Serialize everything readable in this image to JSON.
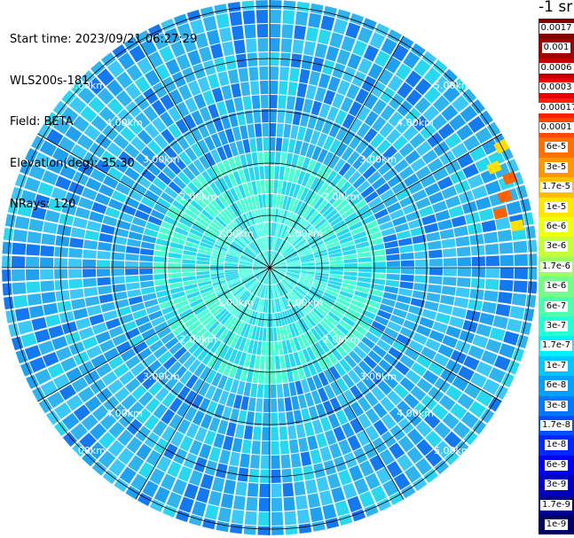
{
  "info": {
    "start_time": "Start time: 2023/09/21 06:27:29",
    "instrument": "WLS200s-181",
    "field": "Field: BETA",
    "elevation": "Elevation(deg): 35.30",
    "nrays": "NRays: 120"
  },
  "colorbar": {
    "unit_label": "-1 sr",
    "levels": [
      {
        "label": "0.0017",
        "color": "#800000"
      },
      {
        "label": "0.001",
        "color": "#a00000"
      },
      {
        "label": "0.0006",
        "color": "#c40000"
      },
      {
        "label": "0.0003",
        "color": "#e80000"
      },
      {
        "label": "0.00017",
        "color": "#ff2000"
      },
      {
        "label": "0.0001",
        "color": "#ff4800"
      },
      {
        "label": "6e-5",
        "color": "#ff7000"
      },
      {
        "label": "3e-5",
        "color": "#ff9800"
      },
      {
        "label": "1.7e-5",
        "color": "#ffc000"
      },
      {
        "label": "1e-5",
        "color": "#ffe800"
      },
      {
        "label": "6e-6",
        "color": "#ecff10"
      },
      {
        "label": "3e-6",
        "color": "#c4ff38"
      },
      {
        "label": "1.7e-6",
        "color": "#9cff60"
      },
      {
        "label": "1e-6",
        "color": "#74ff88"
      },
      {
        "label": "6e-7",
        "color": "#4cffb0"
      },
      {
        "label": "3e-7",
        "color": "#24ffd8"
      },
      {
        "label": "1.7e-7",
        "color": "#00f0ff"
      },
      {
        "label": "1e-7",
        "color": "#00c8ff"
      },
      {
        "label": "6e-8",
        "color": "#00a0ff"
      },
      {
        "label": "3e-8",
        "color": "#0078ff"
      },
      {
        "label": "1.7e-8",
        "color": "#0050ff"
      },
      {
        "label": "1e-8",
        "color": "#0028ff"
      },
      {
        "label": "6e-9",
        "color": "#0000f0"
      },
      {
        "label": "3e-9",
        "color": "#0000c0"
      },
      {
        "label": "1.7e-9",
        "color": "#000090"
      },
      {
        "label": "1e-9",
        "color": "#000064"
      }
    ]
  },
  "rings": [
    {
      "label": "1.00km"
    },
    {
      "label": "2.00km"
    },
    {
      "label": "3.00km"
    },
    {
      "label": "4.00km"
    },
    {
      "label": "5.00km"
    }
  ],
  "colors": {
    "background_field": "#30b4f0",
    "mid_field": "#28d8f0",
    "near_field": "#4cffd0",
    "low": "#1478f0",
    "hot": "#ff6000"
  }
}
